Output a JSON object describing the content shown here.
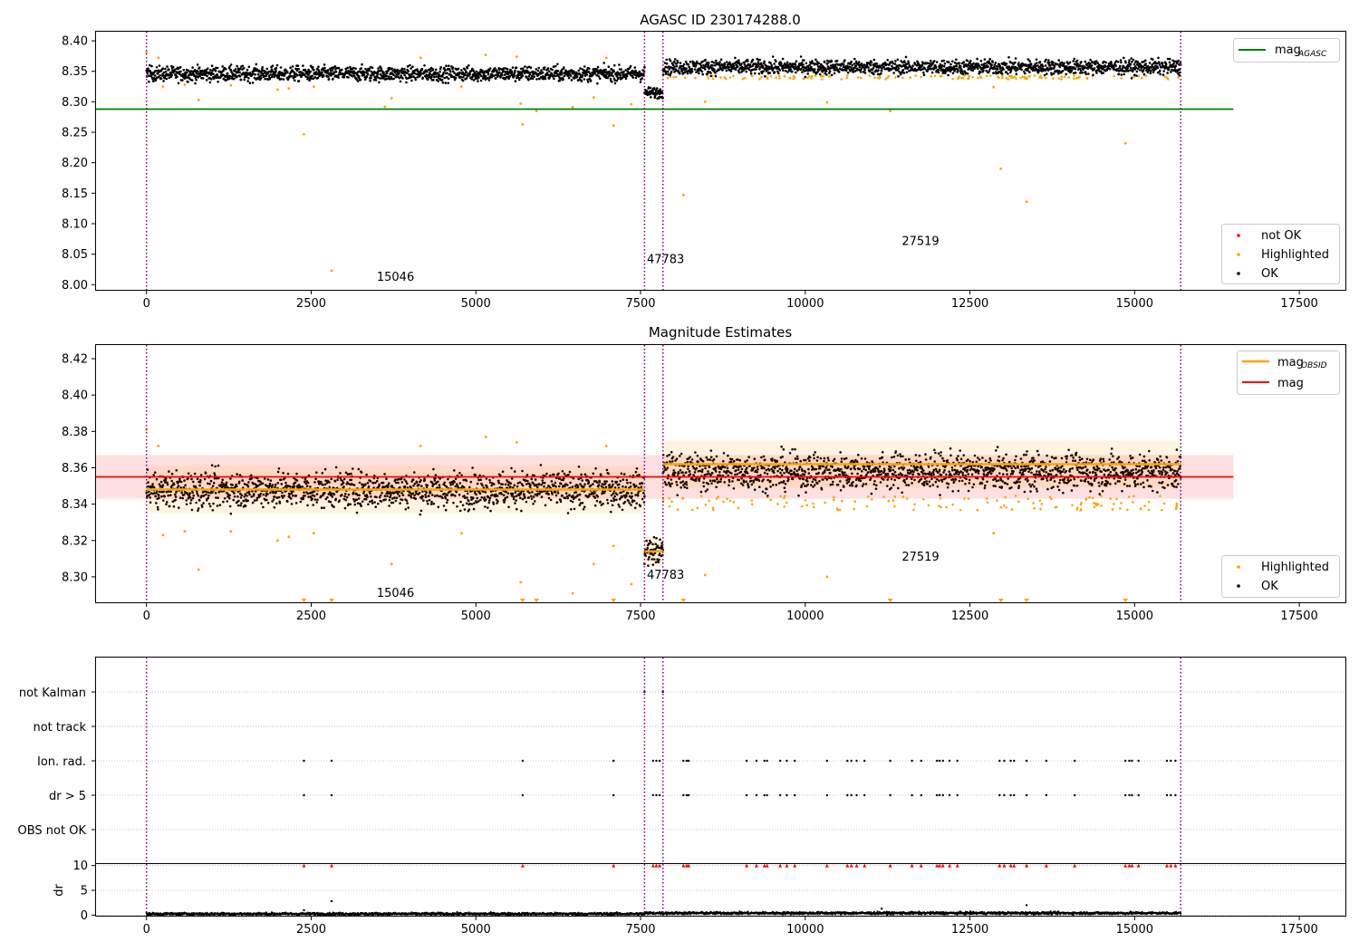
{
  "chart_data": [
    {
      "type": "scatter",
      "title": "AGASC ID 230174288.0",
      "xlim": [
        -780,
        18200
      ],
      "ylim": [
        7.99,
        8.415
      ],
      "xticks": [
        0,
        2500,
        5000,
        7500,
        10000,
        12500,
        15000,
        17500
      ],
      "yticks": [
        8.0,
        8.05,
        8.1,
        8.15,
        8.2,
        8.25,
        8.3,
        8.35,
        8.4
      ],
      "vlines": [
        0,
        7560,
        7840,
        15700
      ],
      "hline": {
        "label": "mag",
        "label_sub": "AGASC",
        "y": 8.288,
        "x0": -780,
        "x1": 16500,
        "color": "#008000"
      },
      "obsid_labels": [
        {
          "text": "15046",
          "x": 3780,
          "y": 8.006
        },
        {
          "text": "47783",
          "x": 7880,
          "y": 8.035
        },
        {
          "text": "27519",
          "x": 11750,
          "y": 8.065
        }
      ],
      "ok_segments": [
        {
          "x0": 0,
          "x1": 7560,
          "mean": 8.346,
          "spread": 0.011
        },
        {
          "x0": 7560,
          "x1": 7840,
          "mean": 8.315,
          "spread": 0.008
        },
        {
          "x0": 7840,
          "x1": 15700,
          "mean": 8.357,
          "spread": 0.011
        }
      ],
      "highlighted_points": [
        [
          0,
          8.381
        ],
        [
          180,
          8.372
        ],
        [
          250,
          8.325
        ],
        [
          580,
          8.328
        ],
        [
          790,
          8.303
        ],
        [
          1280,
          8.327
        ],
        [
          1990,
          8.32
        ],
        [
          2160,
          8.322
        ],
        [
          2390,
          8.247
        ],
        [
          2540,
          8.325
        ],
        [
          2810,
          8.023
        ],
        [
          3620,
          8.292
        ],
        [
          3720,
          8.306
        ],
        [
          4160,
          8.372
        ],
        [
          4780,
          8.325
        ],
        [
          5150,
          8.377
        ],
        [
          5620,
          8.374
        ],
        [
          5680,
          8.297
        ],
        [
          5710,
          8.263
        ],
        [
          5920,
          8.285
        ],
        [
          6470,
          8.291
        ],
        [
          6790,
          8.307
        ],
        [
          6980,
          8.372
        ],
        [
          7090,
          8.261
        ],
        [
          7360,
          8.296
        ],
        [
          8150,
          8.147
        ],
        [
          8480,
          8.3
        ],
        [
          10330,
          8.299
        ],
        [
          11290,
          8.285
        ],
        [
          12860,
          8.324
        ],
        [
          12970,
          8.19
        ],
        [
          13360,
          8.136
        ],
        [
          14860,
          8.232
        ]
      ],
      "highlighted_bands": [
        {
          "x0": 7840,
          "x1": 15700,
          "y": 8.34,
          "count": 140
        }
      ],
      "legends": [
        {
          "position": "top-right",
          "entries": [
            {
              "label": "mag",
              "sub": "AGASC",
              "marker": "line",
              "color": "#008000"
            }
          ]
        },
        {
          "position": "lower-right",
          "entries": [
            {
              "label": "not OK",
              "marker": "dot",
              "color": "#ff0000"
            },
            {
              "label": "Highlighted",
              "marker": "dot",
              "color": "#ffa500"
            },
            {
              "label": "OK",
              "marker": "dot",
              "color": "#000000"
            }
          ]
        }
      ]
    },
    {
      "type": "scatter",
      "title": "Magnitude Estimates",
      "xlim": [
        -780,
        18200
      ],
      "ylim": [
        8.2855,
        8.4275
      ],
      "xticks": [
        0,
        2500,
        5000,
        7500,
        10000,
        12500,
        15000,
        17500
      ],
      "yticks": [
        8.3,
        8.32,
        8.34,
        8.36,
        8.38,
        8.4,
        8.42
      ],
      "vlines": [
        0,
        7560,
        7840,
        15700
      ],
      "mag_line": {
        "label": "mag",
        "y": 8.355,
        "band": [
          8.343,
          8.367
        ],
        "x0": -780,
        "x1": 16500,
        "color": "#ff0000",
        "band_color": "#ffe0e0"
      },
      "obsid_mags": [
        {
          "x0": 0,
          "x1": 7560,
          "y": 8.348,
          "band": [
            8.335,
            8.361
          ]
        },
        {
          "x0": 7560,
          "x1": 7840,
          "y": 8.314,
          "band": [
            8.306,
            8.322
          ]
        },
        {
          "x0": 7840,
          "x1": 15700,
          "y": 8.362,
          "band": [
            8.349,
            8.375
          ]
        }
      ],
      "obsid_labels": [
        {
          "text": "15046",
          "x": 3780,
          "y": 8.289
        },
        {
          "text": "47783",
          "x": 7880,
          "y": 8.299
        },
        {
          "text": "27519",
          "x": 11750,
          "y": 8.309
        }
      ],
      "ok_segments": [
        {
          "x0": 0,
          "x1": 7560,
          "mean": 8.348,
          "spread": 0.009
        },
        {
          "x0": 7560,
          "x1": 7840,
          "mean": 8.314,
          "spread": 0.007
        },
        {
          "x0": 7840,
          "x1": 15700,
          "mean": 8.358,
          "spread": 0.009
        }
      ],
      "highlighted_points": [
        [
          0,
          8.381
        ],
        [
          180,
          8.372
        ],
        [
          250,
          8.323
        ],
        [
          580,
          8.325
        ],
        [
          790,
          8.304
        ],
        [
          1280,
          8.325
        ],
        [
          1990,
          8.32
        ],
        [
          2160,
          8.322
        ],
        [
          2540,
          8.324
        ],
        [
          3720,
          8.307
        ],
        [
          4160,
          8.372
        ],
        [
          4780,
          8.324
        ],
        [
          5150,
          8.377
        ],
        [
          5620,
          8.374
        ],
        [
          5680,
          8.297
        ],
        [
          6470,
          8.291
        ],
        [
          6790,
          8.307
        ],
        [
          6980,
          8.372
        ],
        [
          7090,
          8.317
        ],
        [
          7360,
          8.296
        ],
        [
          8480,
          8.301
        ],
        [
          10330,
          8.3
        ],
        [
          12860,
          8.324
        ]
      ],
      "below_axis_markers": [
        2390,
        2810,
        5710,
        5920,
        7090,
        8150,
        11290,
        12970,
        13360,
        14860
      ],
      "legends": [
        {
          "position": "top-right",
          "entries": [
            {
              "label": "mag",
              "sub": "OBSID",
              "marker": "line",
              "color": "#ffa500"
            },
            {
              "label": "mag",
              "marker": "line",
              "color": "#ff0000"
            }
          ]
        },
        {
          "position": "lower-right",
          "entries": [
            {
              "label": "Highlighted",
              "marker": "dot",
              "color": "#ffa500"
            },
            {
              "label": "OK",
              "marker": "dot",
              "color": "#000000"
            }
          ]
        }
      ]
    },
    {
      "type": "scatter",
      "title": "",
      "xlim": [
        -780,
        18200
      ],
      "categories": [
        "not Kalman",
        "not track",
        "Ion. rad.",
        "dr > 5",
        "OBS not OK"
      ],
      "vlines": [
        0,
        7560,
        7840,
        15700
      ],
      "flags": {
        "not Kalman": [
          7560,
          7840
        ],
        "Ion. rad.": [
          2390,
          2810,
          5710,
          7090,
          7690,
          7740,
          7790,
          8150,
          8200,
          8230,
          9110,
          9260,
          9380,
          9420,
          9620,
          9720,
          9840,
          10330,
          10640,
          10700,
          10780,
          10900,
          11290,
          11620,
          11760,
          12000,
          12040,
          12090,
          12190,
          12310,
          12950,
          13020,
          13120,
          13170,
          13360,
          13660,
          14090,
          14860,
          14920,
          14960,
          15060,
          15490,
          15550,
          15620
        ],
        "dr > 5": [
          2390,
          2810,
          5710,
          7090,
          7690,
          7740,
          7790,
          8150,
          8200,
          8230,
          9110,
          9260,
          9380,
          9420,
          9620,
          9720,
          9840,
          10330,
          10640,
          10700,
          10780,
          10900,
          11290,
          11620,
          11760,
          12000,
          12040,
          12090,
          12190,
          12310,
          12950,
          13020,
          13120,
          13170,
          13360,
          13660,
          14090,
          14860,
          14920,
          14960,
          15060,
          15490,
          15550,
          15620
        ]
      }
    },
    {
      "type": "scatter",
      "title": "",
      "ylabel": "dr",
      "xlim": [
        -780,
        18200
      ],
      "ylim": [
        -0.3,
        10.3
      ],
      "xticks": [
        0,
        2500,
        5000,
        7500,
        10000,
        12500,
        15000,
        17500
      ],
      "yticks": [
        0,
        5,
        10
      ],
      "vlines": [
        0,
        7560,
        7840,
        15700
      ],
      "dr_segments": [
        {
          "x0": 0,
          "x1": 7560,
          "mean": 0.25
        },
        {
          "x0": 7560,
          "x1": 7840,
          "mean": 0.4
        },
        {
          "x0": 7840,
          "x1": 15700,
          "mean": 0.4
        }
      ],
      "dr_outliers": [
        [
          2390,
          1.0
        ],
        [
          2810,
          2.8
        ],
        [
          13360,
          2.0
        ],
        [
          11160,
          1.3
        ]
      ],
      "clipped_markers": [
        2390,
        2810,
        5710,
        7090,
        7690,
        7740,
        7790,
        8150,
        8200,
        8230,
        9110,
        9260,
        9380,
        9420,
        9620,
        9720,
        9840,
        10330,
        10640,
        10700,
        10780,
        10900,
        11290,
        11620,
        11760,
        12000,
        12040,
        12090,
        12190,
        12310,
        12950,
        13020,
        13120,
        13170,
        13360,
        13660,
        14090,
        14860,
        14920,
        14960,
        15060,
        15490,
        15550,
        15620
      ]
    }
  ]
}
